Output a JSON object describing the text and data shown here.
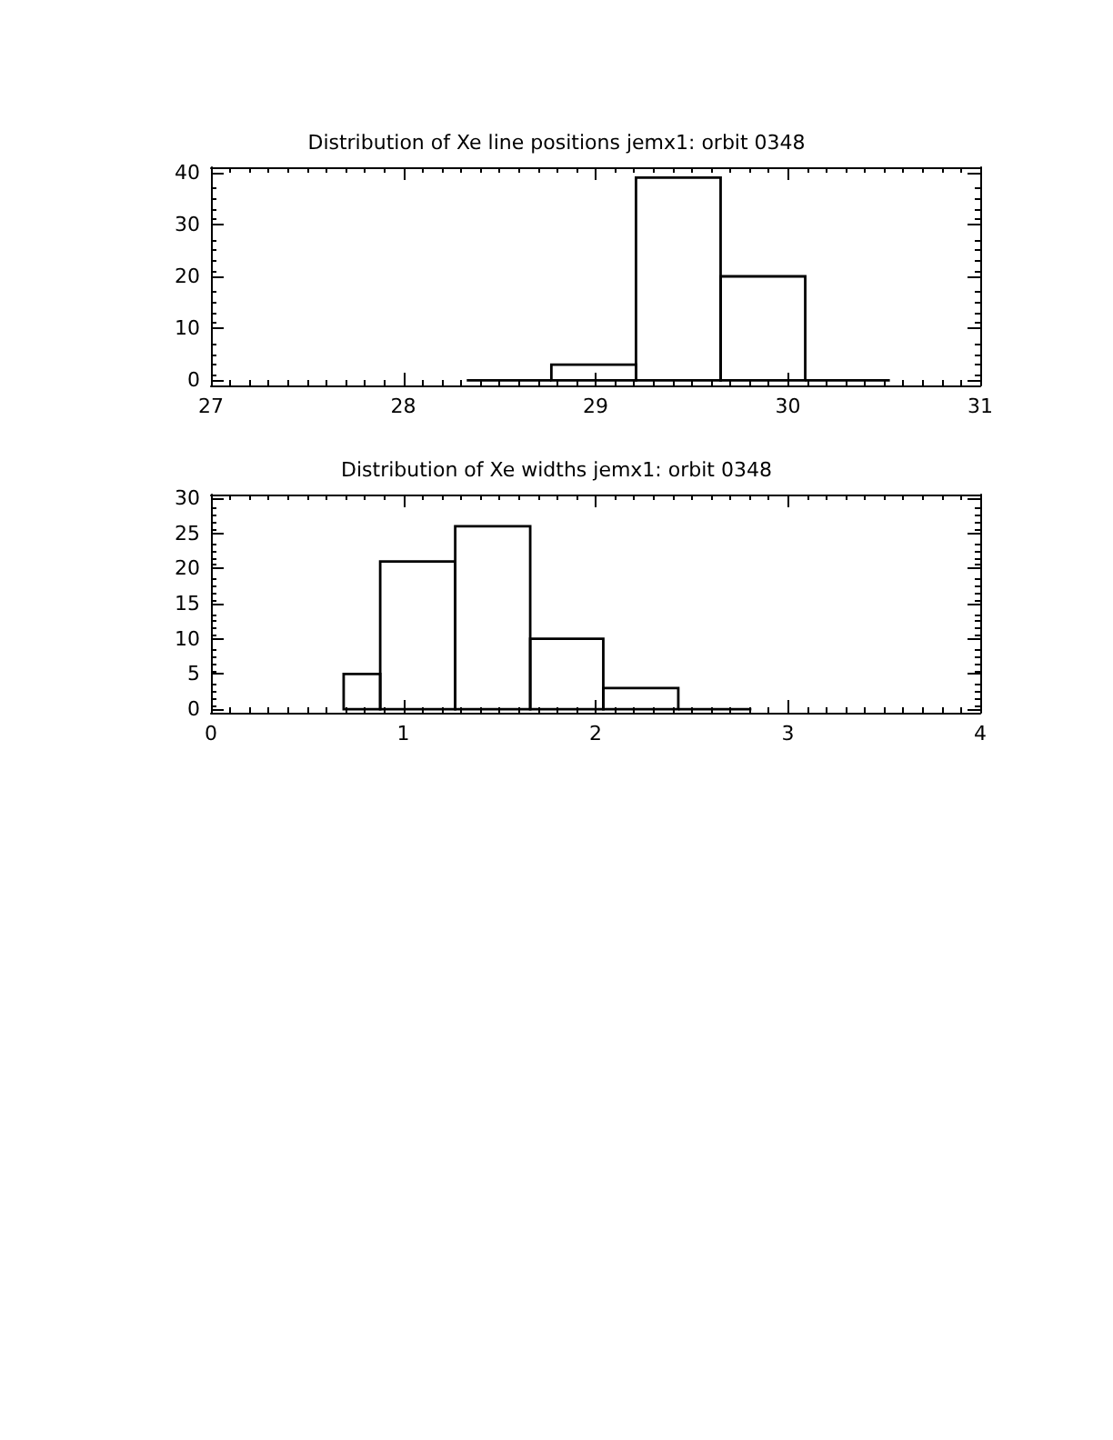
{
  "chart_data": [
    {
      "type": "histogram",
      "title": "Distribution of Xe line positions jemx1: orbit 0348",
      "bins": [
        28.33,
        28.77,
        29.21,
        29.65,
        30.09,
        30.53
      ],
      "values": [
        0,
        3,
        39,
        20,
        0
      ],
      "color": "#000000",
      "xlim": [
        27,
        31
      ],
      "xticks": [
        27,
        28,
        29,
        30,
        31
      ],
      "ylim": [
        -1,
        41
      ],
      "yticks": [
        0,
        10,
        20,
        30,
        40
      ]
    },
    {
      "type": "histogram",
      "title": "Distribution of Xe widths jemx1: orbit 0348",
      "bins": [
        0.69,
        0.88,
        1.27,
        1.66,
        2.04,
        2.43,
        2.81
      ],
      "values": [
        5,
        21,
        26,
        10,
        3,
        0
      ],
      "color": "#000000",
      "xlim": [
        0,
        4
      ],
      "xticks": [
        0,
        1,
        2,
        3,
        4
      ],
      "ylim": [
        -0.5,
        30.5
      ],
      "yticks": [
        0,
        5,
        10,
        15,
        20,
        25,
        30
      ]
    }
  ]
}
